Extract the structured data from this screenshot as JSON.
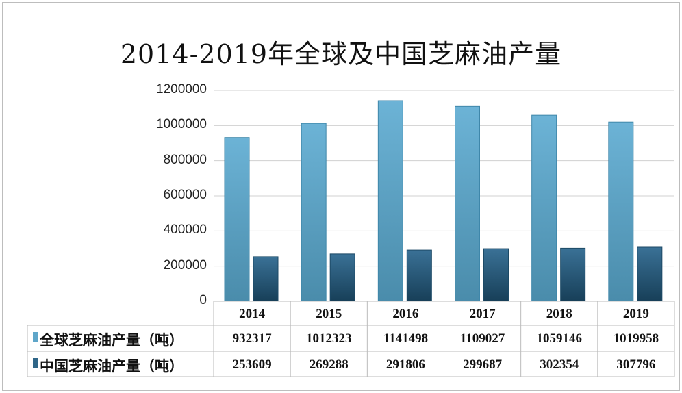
{
  "chart_data": {
    "type": "bar",
    "title": "2014-2019年全球及中国芝麻油产量",
    "categories": [
      "2014",
      "2015",
      "2016",
      "2017",
      "2018",
      "2019"
    ],
    "series": [
      {
        "name": "全球芝麻油产量（吨）",
        "color": "#5fa6c9",
        "values": [
          932317,
          1012323,
          1141498,
          1109027,
          1059146,
          1019958
        ]
      },
      {
        "name": "中国芝麻油产量（吨）",
        "color": "#2f6688",
        "values": [
          253609,
          269288,
          291806,
          299687,
          302354,
          307796
        ]
      }
    ],
    "yticks": [
      "0",
      "200000",
      "400000",
      "600000",
      "800000",
      "1000000",
      "1200000"
    ],
    "ylim": [
      0,
      1200000
    ],
    "grid": true,
    "legend": "data-table"
  }
}
